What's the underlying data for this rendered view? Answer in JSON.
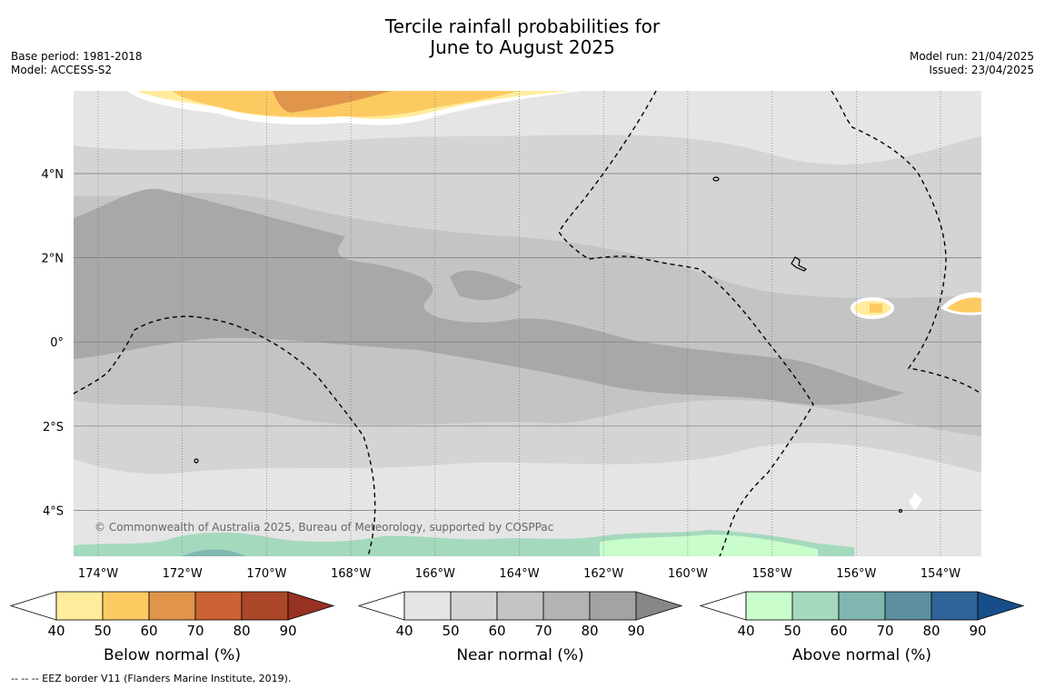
{
  "title": {
    "line1": "Tercile rainfall probabilities for",
    "line2": "June to August 2025"
  },
  "meta": {
    "base_period": "Base period: 1981-2018",
    "model": "Model: ACCESS-S2",
    "model_run": "Model run: 21/04/2025",
    "issued": "Issued: 23/04/2025"
  },
  "map": {
    "lon_labels": [
      "174°W",
      "172°W",
      "170°W",
      "168°W",
      "166°W",
      "164°W",
      "162°W",
      "160°W",
      "158°W",
      "156°W",
      "154°W"
    ],
    "lat_labels": [
      "4°N",
      "2°N",
      "0°",
      "2°S",
      "4°S"
    ],
    "copyright": "© Commonwealth of Australia 2025, Bureau of Meteorology, supported by COSPPac"
  },
  "colorbars": [
    {
      "label": "Below normal (%)",
      "ticks": [
        "40",
        "50",
        "60",
        "70",
        "80",
        "90"
      ],
      "colors": [
        "#ffffff",
        "#ffec9c",
        "#fdca62",
        "#e0954a",
        "#cb6233",
        "#ac4628",
        "#973122"
      ]
    },
    {
      "label": "Near normal (%)",
      "ticks": [
        "40",
        "50",
        "60",
        "70",
        "80",
        "90"
      ],
      "colors": [
        "#ffffff",
        "#e5e5e5",
        "#d4d4d4",
        "#c4c4c4",
        "#b3b3b3",
        "#a3a3a3",
        "#878787"
      ]
    },
    {
      "label": "Above normal (%)",
      "ticks": [
        "40",
        "50",
        "60",
        "70",
        "80",
        "90"
      ],
      "colors": [
        "#ffffff",
        "#c9fdcb",
        "#a4d9be",
        "#80b7b0",
        "#5c8fa0",
        "#2f6499",
        "#174e8a"
      ]
    }
  ],
  "footer": "--  --  -- EEZ border V11 (Flanders Marine Institute, 2019)."
}
